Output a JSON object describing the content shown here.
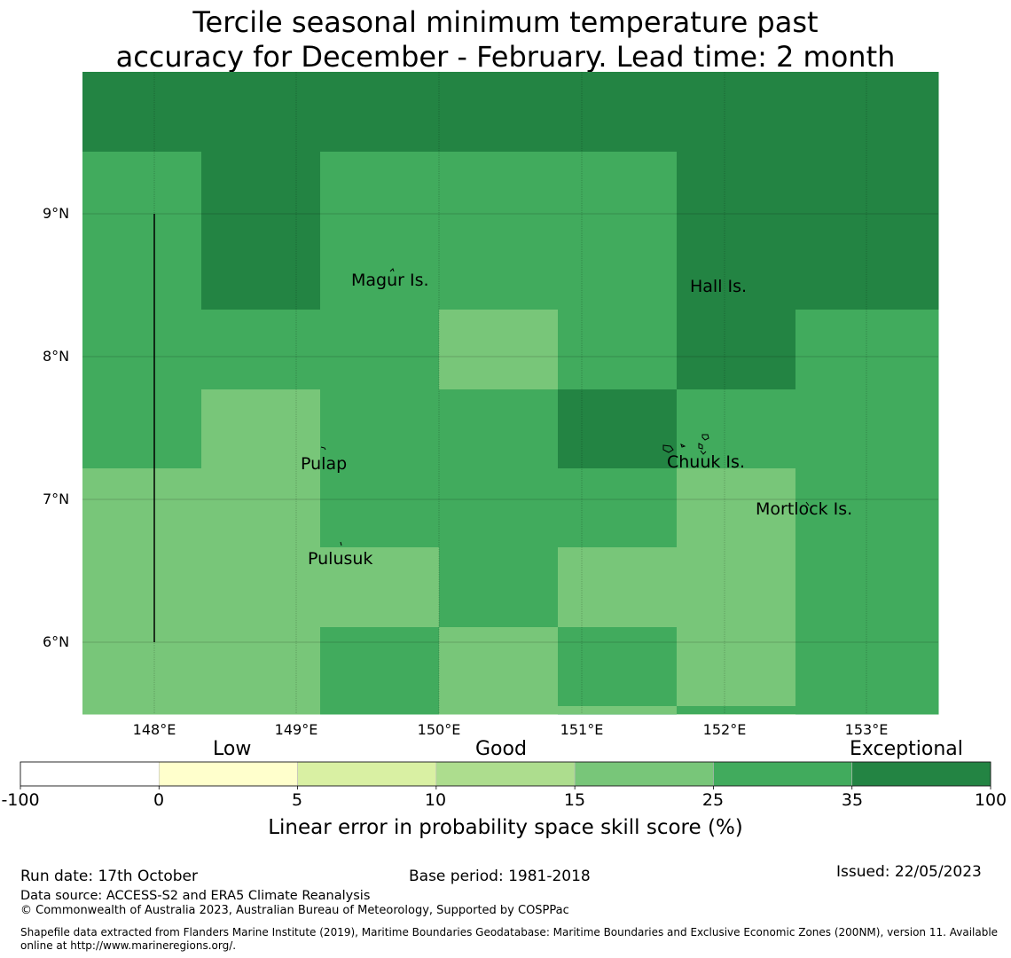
{
  "title": {
    "line1": "Tercile seasonal minimum temperature past",
    "line2": "accuracy for December - February. Lead time: 2 month"
  },
  "colors": {
    "c0": "#ffffff",
    "c1": "#ffffcc",
    "c2": "#d9f0a3",
    "c3": "#addd8e",
    "c4": "#78c679",
    "c5": "#41ab5d",
    "c6": "#238443"
  },
  "map": {
    "lat_labels": [
      "9°N",
      "8°N",
      "7°N",
      "6°N"
    ],
    "lon_labels": [
      "148°E",
      "149°E",
      "150°E",
      "151°E",
      "152°E",
      "153°E"
    ],
    "lon_range": [
      147.5,
      153.5
    ],
    "lat_range": [
      5.5,
      10.0
    ],
    "grid": [
      [
        "c6",
        "c6",
        "c6",
        "c6",
        "c6",
        "c6",
        "c6"
      ],
      [
        "c5",
        "c6",
        "c5",
        "c5",
        "c5",
        "c6",
        "c6"
      ],
      [
        "c5",
        "c5",
        "c5",
        "c4",
        "c5",
        "c6",
        "c5"
      ],
      [
        "c5",
        "c4",
        "c5",
        "c5",
        "c6",
        "c5",
        "c5"
      ],
      [
        "c4",
        "c4",
        "c5",
        "c5",
        "c5",
        "c4",
        "c5"
      ],
      [
        "c4",
        "c4",
        "c4",
        "c5",
        "c4",
        "c4",
        "c5"
      ],
      [
        "c4",
        "c4",
        "c5",
        "c4",
        "c5",
        "c4",
        "c5"
      ]
    ],
    "places": [
      {
        "name": "Magur Is."
      },
      {
        "name": "Hall Is."
      },
      {
        "name": "Pulap"
      },
      {
        "name": "Chuuk Is."
      },
      {
        "name": "Mortlock Is."
      },
      {
        "name": "Pulusuk"
      }
    ]
  },
  "colorbar": {
    "categories": [
      "Low",
      "Good",
      "Exceptional"
    ],
    "ticks": [
      "-100",
      "0",
      "5",
      "10",
      "15",
      "25",
      "35",
      "100"
    ],
    "segment_colors": [
      "c0",
      "c1",
      "c2",
      "c3",
      "c4",
      "c5",
      "c6"
    ],
    "label": "Linear error in probability space skill score (%)"
  },
  "footer": {
    "run_date": "Run date: 17th October",
    "base_period": "Base period: 1981-2018",
    "issued": "Issued: 22/05/2023",
    "data_source": "Data source: ACCESS-S2 and ERA5 Climate Reanalysis",
    "copyright": "© Commonwealth of Australia 2023, Australian Bureau of Meteorology, Supported by COSPPac",
    "shapefile_line1": "Shapefile data extracted from Flanders Marine Institute (2019), Maritime Boundaries Geodatabase: Maritime Boundaries and Exclusive Economic Zones (200NM), version 11. Available",
    "shapefile_line2": "online at http://www.marineregions.org/."
  }
}
